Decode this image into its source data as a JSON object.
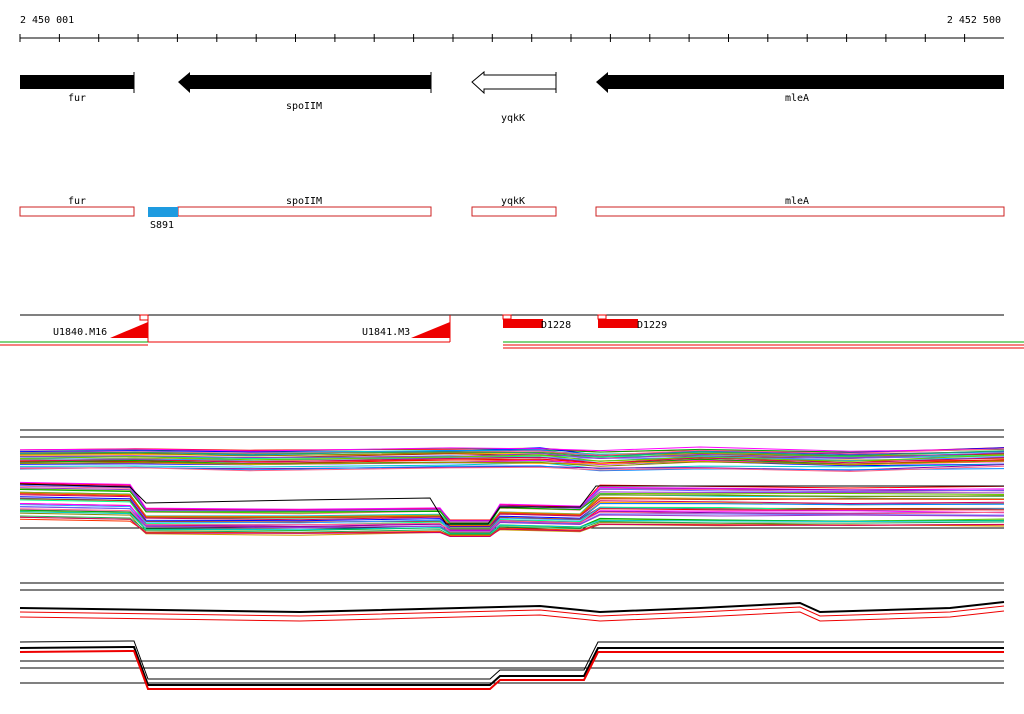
{
  "ruler": {
    "start_label": "2 450 001",
    "end_label": "2 452 500"
  },
  "genes": [
    {
      "name": "fur",
      "strand": "-",
      "filled": true
    },
    {
      "name": "spoIIM",
      "strand": "-",
      "filled": true
    },
    {
      "name": "yqkK",
      "strand": "-",
      "filled": false
    },
    {
      "name": "mleA",
      "strand": "-",
      "filled": true
    }
  ],
  "annotations": [
    {
      "name": "fur"
    },
    {
      "name": "spoIIM"
    },
    {
      "name": "yqkK"
    },
    {
      "name": "mleA"
    }
  ],
  "site": {
    "label": "S891",
    "color": "#1e9be0"
  },
  "features": [
    {
      "label": "U1840.M16",
      "shape": "ramp"
    },
    {
      "label": "U1841.M3",
      "shape": "ramp"
    },
    {
      "label": "D1228",
      "shape": "block"
    },
    {
      "label": "D1229",
      "shape": "block"
    }
  ],
  "colors": {
    "gene_fill": "#000000",
    "annotation_stroke": "#cc2222",
    "feature_red": "#ee0000",
    "site_blue": "#1e9be0"
  },
  "profile_palette": [
    "#ff0000",
    "#00aa00",
    "#0000ff",
    "#ff00ff",
    "#00cccc",
    "#ffaa00",
    "#8800aa",
    "#888800",
    "#0088ff",
    "#ff6688",
    "#22aa55",
    "#aa3300",
    "#6666ff",
    "#cc9900",
    "#00ff88",
    "#9933cc",
    "#ff3300",
    "#3399ff",
    "#66cc00",
    "#cc0066"
  ]
}
